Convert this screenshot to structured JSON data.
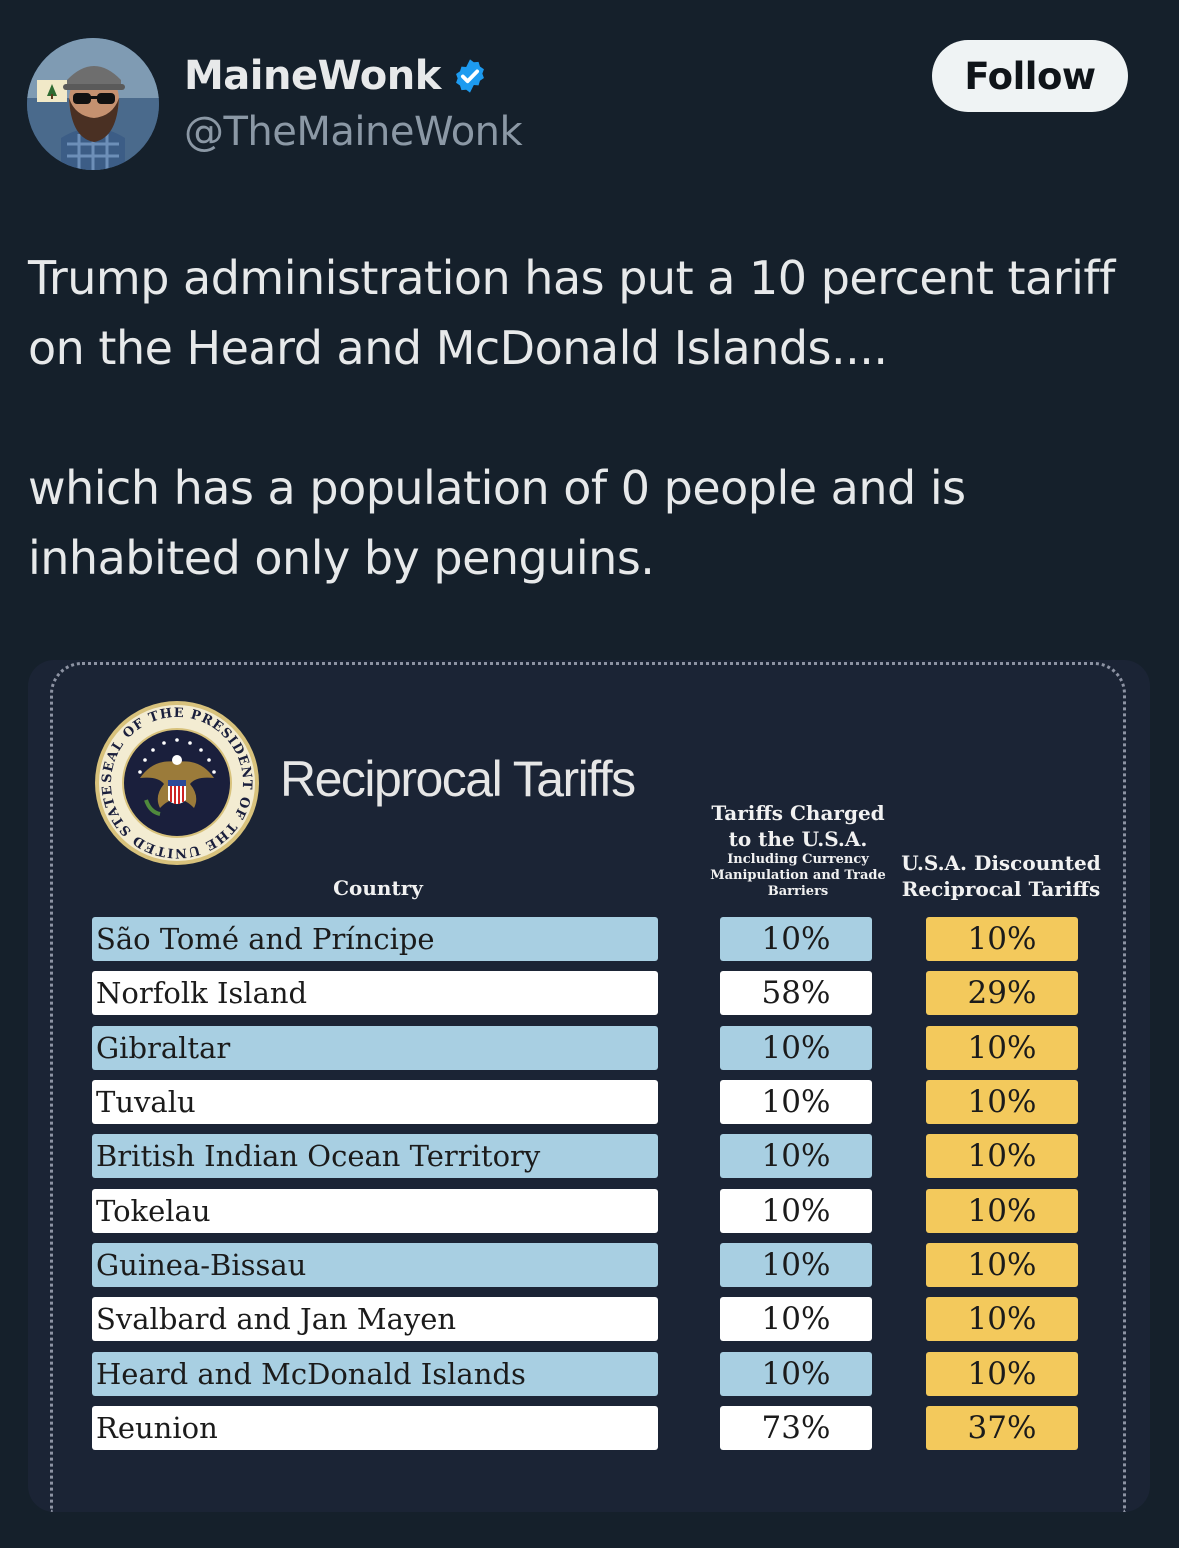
{
  "tweet": {
    "author": {
      "display_name": "MaineWonk",
      "handle": "@TheMaineWonk",
      "verified": true,
      "avatar_icon": "profile-photo"
    },
    "follow_label": "Follow",
    "text_lines": [
      "Trump administration has put a 10 percent tariff",
      "on the Heard and McDonald Islands....",
      "which has a population of 0 people and is",
      "inhabited only by penguins."
    ]
  },
  "image": {
    "title": "Reciprocal Tariffs",
    "seal_text": "SEAL OF THE PRESIDENT OF THE UNITED STATES",
    "headers": {
      "country": "Country",
      "charged_main": "Tariffs Charged to the U.S.A.",
      "charged_sub": "Including Currency Manipulation and Trade Barriers",
      "discounted": "U.S.A. Discounted Reciprocal Tariffs"
    },
    "rows": [
      {
        "country": "São Tomé and Príncipe",
        "charged": "10%",
        "discounted": "10%"
      },
      {
        "country": "Norfolk Island",
        "charged": "58%",
        "discounted": "29%"
      },
      {
        "country": "Gibraltar",
        "charged": "10%",
        "discounted": "10%"
      },
      {
        "country": "Tuvalu",
        "charged": "10%",
        "discounted": "10%"
      },
      {
        "country": "British Indian Ocean Territory",
        "charged": "10%",
        "discounted": "10%"
      },
      {
        "country": "Tokelau",
        "charged": "10%",
        "discounted": "10%"
      },
      {
        "country": "Guinea-Bissau",
        "charged": "10%",
        "discounted": "10%"
      },
      {
        "country": "Svalbard and Jan Mayen",
        "charged": "10%",
        "discounted": "10%"
      },
      {
        "country": "Heard and McDonald Islands",
        "charged": "10%",
        "discounted": "10%"
      },
      {
        "country": "Reunion",
        "charged": "73%",
        "discounted": "37%"
      }
    ]
  },
  "colors": {
    "background": "#15202b",
    "row_blue": "#a8cfe2",
    "row_white": "#ffffff",
    "discount_gold": "#f3c95c",
    "verified_blue": "#1d9bf0"
  }
}
